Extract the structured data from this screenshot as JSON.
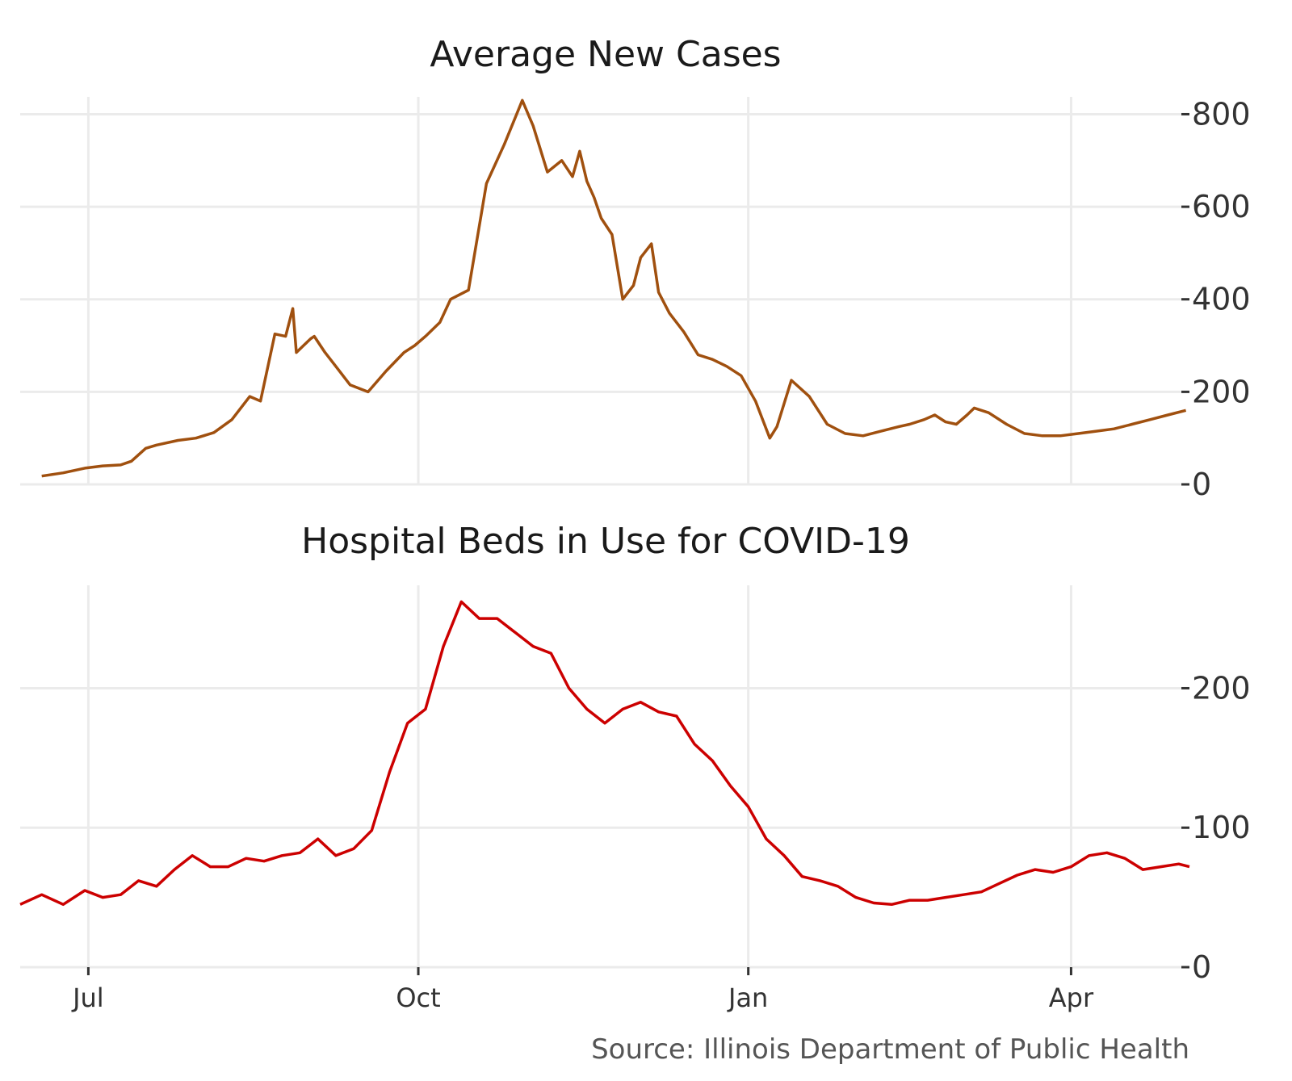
{
  "source": "Source: Illinois Department of Public Health",
  "colors": {
    "cases": "#a0500f",
    "beds": "#cc0000",
    "grid": "#ebebeb",
    "text": "#333333"
  },
  "chart_data": [
    {
      "type": "line",
      "title": "Average New Cases",
      "xlabel": "",
      "ylabel": "",
      "ylim": [
        0,
        820
      ],
      "yticks": [
        0,
        200,
        400,
        600,
        800
      ],
      "grid": true,
      "y_axis_side": "right",
      "x_range": [
        "2020-06-12",
        "2021-05-04"
      ],
      "xticks": [
        {
          "date": "2020-07-01",
          "label": "Jul"
        },
        {
          "date": "2020-10-01",
          "label": "Oct"
        },
        {
          "date": "2021-01-01",
          "label": "Jan"
        },
        {
          "date": "2021-04-01",
          "label": "Apr"
        }
      ],
      "series": [
        {
          "x": [
            "2020-06-18",
            "2020-06-24",
            "2020-06-30",
            "2020-07-05",
            "2020-07-10",
            "2020-07-13",
            "2020-07-17",
            "2020-07-20",
            "2020-07-26",
            "2020-07-31",
            "2020-08-05",
            "2020-08-10",
            "2020-08-15",
            "2020-08-18",
            "2020-08-22",
            "2020-08-25",
            "2020-08-27",
            "2020-08-28",
            "2020-08-30",
            "2020-09-01",
            "2020-09-02",
            "2020-09-05",
            "2020-09-08",
            "2020-09-12",
            "2020-09-17",
            "2020-09-22",
            "2020-09-27",
            "2020-09-30",
            "2020-10-03",
            "2020-10-07",
            "2020-10-10",
            "2020-10-15",
            "2020-10-20",
            "2020-10-25",
            "2020-10-30",
            "2020-11-02",
            "2020-11-06",
            "2020-11-10",
            "2020-11-13",
            "2020-11-15",
            "2020-11-17",
            "2020-11-19",
            "2020-11-21",
            "2020-11-24",
            "2020-11-27",
            "2020-11-30",
            "2020-12-02",
            "2020-12-05",
            "2020-12-07",
            "2020-12-10",
            "2020-12-14",
            "2020-12-18",
            "2020-12-22",
            "2020-12-26",
            "2020-12-30",
            "2021-01-03",
            "2021-01-07",
            "2021-01-09",
            "2021-01-13",
            "2021-01-18",
            "2021-01-23",
            "2021-01-28",
            "2021-02-02",
            "2021-02-07",
            "2021-02-12",
            "2021-02-15",
            "2021-02-19",
            "2021-02-22",
            "2021-02-25",
            "2021-02-28",
            "2021-03-03",
            "2021-03-05",
            "2021-03-09",
            "2021-03-14",
            "2021-03-19",
            "2021-03-24",
            "2021-03-29",
            "2021-04-03",
            "2021-04-08",
            "2021-04-13",
            "2021-04-18",
            "2021-04-23",
            "2021-04-28",
            "2021-05-03"
          ],
          "values": [
            18,
            25,
            35,
            40,
            42,
            50,
            78,
            85,
            95,
            100,
            112,
            140,
            190,
            180,
            325,
            320,
            380,
            285,
            300,
            315,
            320,
            285,
            255,
            215,
            200,
            245,
            285,
            300,
            320,
            350,
            400,
            420,
            650,
            735,
            830,
            775,
            675,
            700,
            665,
            720,
            655,
            620,
            575,
            540,
            400,
            430,
            490,
            520,
            415,
            370,
            330,
            280,
            270,
            255,
            235,
            180,
            100,
            125,
            225,
            190,
            130,
            110,
            105,
            115,
            125,
            130,
            140,
            150,
            135,
            130,
            150,
            165,
            155,
            130,
            110,
            105,
            105,
            110,
            115,
            120,
            130,
            140,
            150,
            160
          ]
        }
      ]
    },
    {
      "type": "line",
      "title": "Hospital Beds in Use for COVID-19",
      "xlabel": "",
      "ylabel": "",
      "ylim": [
        0,
        268
      ],
      "yticks": [
        0,
        100,
        200
      ],
      "grid": true,
      "y_axis_side": "right",
      "x_range": [
        "2020-06-12",
        "2021-05-04"
      ],
      "xticks": [
        {
          "date": "2020-07-01",
          "label": "Jul"
        },
        {
          "date": "2020-10-01",
          "label": "Oct"
        },
        {
          "date": "2021-01-01",
          "label": "Jan"
        },
        {
          "date": "2021-04-01",
          "label": "Apr"
        }
      ],
      "series": [
        {
          "x": [
            "2020-06-12",
            "2020-06-18",
            "2020-06-24",
            "2020-06-30",
            "2020-07-05",
            "2020-07-10",
            "2020-07-15",
            "2020-07-20",
            "2020-07-25",
            "2020-07-30",
            "2020-08-04",
            "2020-08-09",
            "2020-08-14",
            "2020-08-19",
            "2020-08-24",
            "2020-08-29",
            "2020-09-03",
            "2020-09-08",
            "2020-09-13",
            "2020-09-18",
            "2020-09-23",
            "2020-09-28",
            "2020-10-03",
            "2020-10-08",
            "2020-10-13",
            "2020-10-18",
            "2020-10-23",
            "2020-10-28",
            "2020-11-02",
            "2020-11-07",
            "2020-11-12",
            "2020-11-17",
            "2020-11-22",
            "2020-11-27",
            "2020-12-02",
            "2020-12-07",
            "2020-12-12",
            "2020-12-17",
            "2020-12-22",
            "2020-12-27",
            "2021-01-01",
            "2021-01-06",
            "2021-01-11",
            "2021-01-16",
            "2021-01-21",
            "2021-01-26",
            "2021-01-31",
            "2021-02-05",
            "2021-02-10",
            "2021-02-15",
            "2021-02-20",
            "2021-02-25",
            "2021-03-02",
            "2021-03-07",
            "2021-03-12",
            "2021-03-17",
            "2021-03-22",
            "2021-03-27",
            "2021-04-01",
            "2021-04-06",
            "2021-04-11",
            "2021-04-16",
            "2021-04-21",
            "2021-04-26",
            "2021-05-01",
            "2021-05-04"
          ],
          "values": [
            45,
            52,
            45,
            55,
            50,
            52,
            62,
            58,
            70,
            80,
            72,
            72,
            78,
            76,
            80,
            82,
            92,
            80,
            85,
            98,
            140,
            175,
            185,
            230,
            262,
            250,
            250,
            240,
            230,
            225,
            200,
            185,
            175,
            185,
            190,
            183,
            180,
            160,
            148,
            130,
            115,
            92,
            80,
            65,
            62,
            58,
            50,
            46,
            45,
            48,
            48,
            50,
            52,
            54,
            60,
            66,
            70,
            68,
            72,
            80,
            82,
            78,
            70,
            72,
            74,
            72
          ]
        }
      ]
    }
  ]
}
